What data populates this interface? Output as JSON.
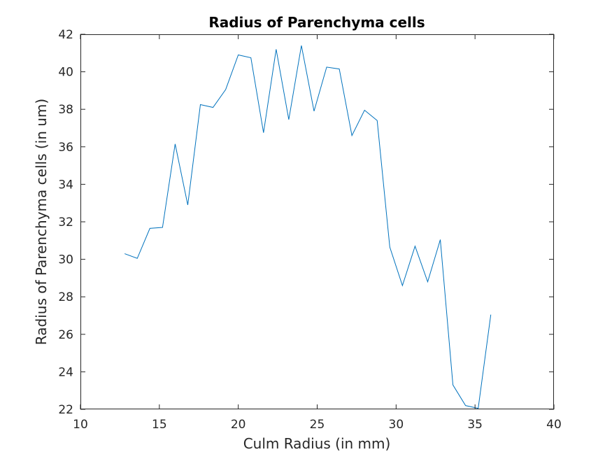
{
  "chart_data": {
    "type": "line",
    "title": "Radius of Parenchyma cells",
    "xlabel": "Culm Radius (in mm)",
    "ylabel": "Radius of Parenchyma cells (in um)",
    "xlim": [
      10,
      40
    ],
    "ylim": [
      22,
      42
    ],
    "xticks": [
      "10",
      "15",
      "20",
      "25",
      "30",
      "35",
      "40"
    ],
    "yticks": [
      "22",
      "24",
      "26",
      "28",
      "30",
      "32",
      "34",
      "36",
      "38",
      "40",
      "42"
    ],
    "grid": false,
    "box": true,
    "series": [
      {
        "color": "#0072bd",
        "x": [
          12.8,
          13.6,
          14.4,
          15.2,
          16.0,
          16.8,
          17.6,
          18.4,
          19.2,
          20.0,
          20.8,
          21.6,
          22.4,
          23.2,
          24.0,
          24.8,
          25.6,
          26.4,
          27.2,
          28.0,
          28.8,
          29.6,
          30.4,
          31.2,
          32.0,
          32.8,
          33.6,
          34.4,
          35.2,
          36.0
        ],
        "y": [
          30.3,
          30.05,
          31.65,
          31.7,
          36.15,
          32.9,
          38.25,
          38.1,
          39.05,
          40.9,
          40.75,
          36.75,
          41.2,
          37.45,
          41.4,
          37.9,
          40.25,
          40.15,
          36.6,
          37.95,
          37.4,
          30.65,
          28.6,
          30.7,
          28.8,
          31.05,
          23.3,
          22.2,
          22.05,
          27.05
        ]
      }
    ]
  }
}
